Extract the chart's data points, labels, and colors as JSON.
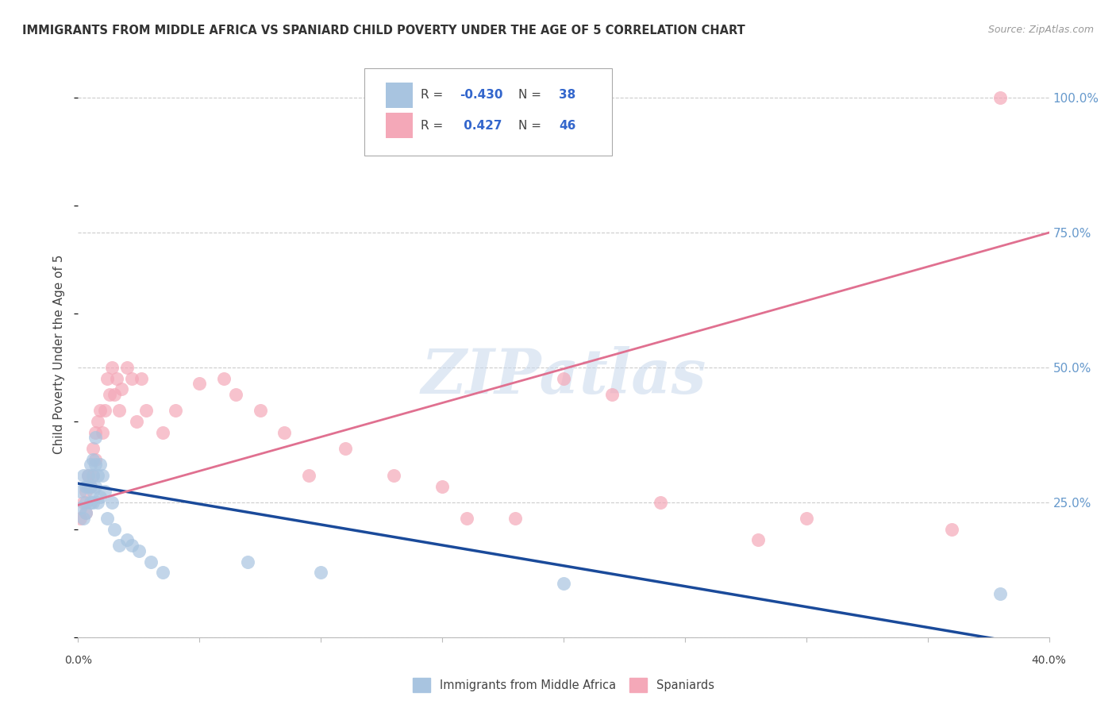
{
  "title": "IMMIGRANTS FROM MIDDLE AFRICA VS SPANIARD CHILD POVERTY UNDER THE AGE OF 5 CORRELATION CHART",
  "source": "Source: ZipAtlas.com",
  "ylabel": "Child Poverty Under the Age of 5",
  "legend_blue_r": "-0.430",
  "legend_blue_n": "38",
  "legend_pink_r": " 0.427",
  "legend_pink_n": "46",
  "blue_color": "#a8c4e0",
  "blue_line_color": "#1a4a9a",
  "pink_color": "#f4a8b8",
  "pink_line_color": "#e07090",
  "right_label_color": "#6699cc",
  "watermark_color": "#c8d8ec",
  "watermark": "ZIPatlas",
  "blue_x": [
    0.001,
    0.001,
    0.002,
    0.002,
    0.003,
    0.003,
    0.003,
    0.004,
    0.004,
    0.005,
    0.005,
    0.005,
    0.006,
    0.006,
    0.006,
    0.006,
    0.007,
    0.007,
    0.007,
    0.008,
    0.008,
    0.009,
    0.009,
    0.01,
    0.011,
    0.012,
    0.014,
    0.015,
    0.017,
    0.02,
    0.022,
    0.025,
    0.03,
    0.035,
    0.07,
    0.1,
    0.2,
    0.38
  ],
  "blue_y": [
    0.27,
    0.24,
    0.3,
    0.22,
    0.28,
    0.25,
    0.23,
    0.3,
    0.28,
    0.32,
    0.28,
    0.25,
    0.33,
    0.3,
    0.27,
    0.25,
    0.37,
    0.32,
    0.28,
    0.3,
    0.25,
    0.32,
    0.26,
    0.3,
    0.27,
    0.22,
    0.25,
    0.2,
    0.17,
    0.18,
    0.17,
    0.16,
    0.14,
    0.12,
    0.14,
    0.12,
    0.1,
    0.08
  ],
  "pink_x": [
    0.001,
    0.002,
    0.003,
    0.003,
    0.004,
    0.005,
    0.006,
    0.006,
    0.007,
    0.007,
    0.008,
    0.009,
    0.01,
    0.011,
    0.012,
    0.013,
    0.014,
    0.015,
    0.016,
    0.017,
    0.018,
    0.02,
    0.022,
    0.024,
    0.026,
    0.028,
    0.035,
    0.04,
    0.05,
    0.06,
    0.065,
    0.075,
    0.085,
    0.095,
    0.11,
    0.13,
    0.15,
    0.16,
    0.18,
    0.2,
    0.22,
    0.24,
    0.28,
    0.3,
    0.36,
    0.38
  ],
  "pink_y": [
    0.22,
    0.25,
    0.27,
    0.23,
    0.3,
    0.28,
    0.35,
    0.3,
    0.38,
    0.33,
    0.4,
    0.42,
    0.38,
    0.42,
    0.48,
    0.45,
    0.5,
    0.45,
    0.48,
    0.42,
    0.46,
    0.5,
    0.48,
    0.4,
    0.48,
    0.42,
    0.38,
    0.42,
    0.47,
    0.48,
    0.45,
    0.42,
    0.38,
    0.3,
    0.35,
    0.3,
    0.28,
    0.22,
    0.22,
    0.48,
    0.45,
    0.25,
    0.18,
    0.22,
    0.2,
    1.0
  ],
  "blue_trend_x": [
    0.0,
    0.4
  ],
  "blue_trend_y": [
    0.285,
    -0.02
  ],
  "pink_trend_x": [
    0.0,
    0.4
  ],
  "pink_trend_y": [
    0.245,
    0.75
  ],
  "xlim": [
    0.0,
    0.4
  ],
  "ylim": [
    0.0,
    1.05
  ],
  "ytick_positions": [
    0.0,
    0.25,
    0.5,
    0.75,
    1.0
  ],
  "right_yticklabels": [
    "",
    "25.0%",
    "50.0%",
    "75.0%",
    "100.0%"
  ]
}
